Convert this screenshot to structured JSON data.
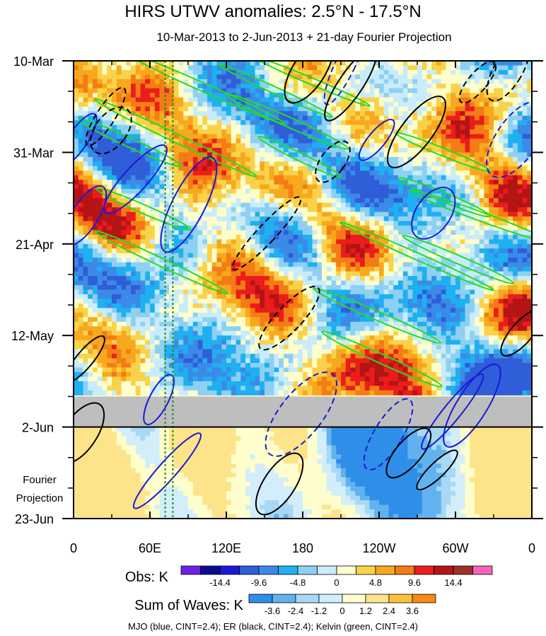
{
  "chart_data": {
    "type": "heatmap",
    "title": "HIRS UTWV anomalies: 2.5°N - 17.5°N",
    "subtitle": "10-Mar-2013 to 2-Jun-2013 + 21-day Fourier Projection",
    "x_tick_labels": [
      "0",
      "60E",
      "120E",
      "180",
      "120W",
      "60W",
      "0"
    ],
    "x_tick_values_deg_east": [
      0,
      60,
      120,
      180,
      240,
      300,
      360
    ],
    "xlim": [
      0,
      360
    ],
    "y_tick_labels": [
      "10-Mar",
      "31-Mar",
      "21-Apr",
      "12-May",
      "2-Jun",
      "23-Jun"
    ],
    "y_tick_dates": [
      "2013-03-10",
      "2013-03-31",
      "2013-04-21",
      "2013-05-12",
      "2013-06-02",
      "2013-06-23"
    ],
    "ylim": [
      "2013-03-10",
      "2013-06-23"
    ],
    "forecast_label": [
      "Fourier",
      "Projection"
    ],
    "missing_data_band": [
      "2013-05-26",
      "2013-06-02"
    ],
    "reference_lines_deg_east": [
      72,
      78
    ],
    "obs_colorbar": {
      "label": "Obs: K",
      "tick_labels": [
        "-14.4",
        "-9.6",
        "-4.8",
        "0",
        "4.8",
        "9.6",
        "14.4"
      ],
      "colors": [
        "#6e21e6",
        "#0c0c8e",
        "#1a1ad6",
        "#2f5ed8",
        "#3c8ae8",
        "#1eb0f0",
        "#8ed0f2",
        "#c8ecfa",
        "#fefecc",
        "#fad24a",
        "#f8a81e",
        "#f47c14",
        "#ec1c1c",
        "#b41414",
        "#a0302c",
        "#f464bc"
      ]
    },
    "waves_colorbar": {
      "label": "Sum of Waves: K",
      "tick_labels": [
        "-3.6",
        "-2.4",
        "-1.2",
        "0",
        "1.2",
        "2.4",
        "3.6"
      ],
      "colors": [
        "#2f8fe8",
        "#62b2f0",
        "#a8d8f6",
        "#d2eefa",
        "#fefecc",
        "#fde48a",
        "#fcc23c",
        "#f58a14"
      ]
    },
    "series": [
      {
        "name": "MJO",
        "color": "blue",
        "cint": 2.4
      },
      {
        "name": "ER",
        "color": "black",
        "cint": 2.4
      },
      {
        "name": "Kelvin",
        "color": "green",
        "cint": 2.4
      }
    ],
    "footer": "MJO (blue, CINT=2.4); ER (black, CINT=2.4); Kelvin (green, CINT=2.4)",
    "grid": false
  }
}
